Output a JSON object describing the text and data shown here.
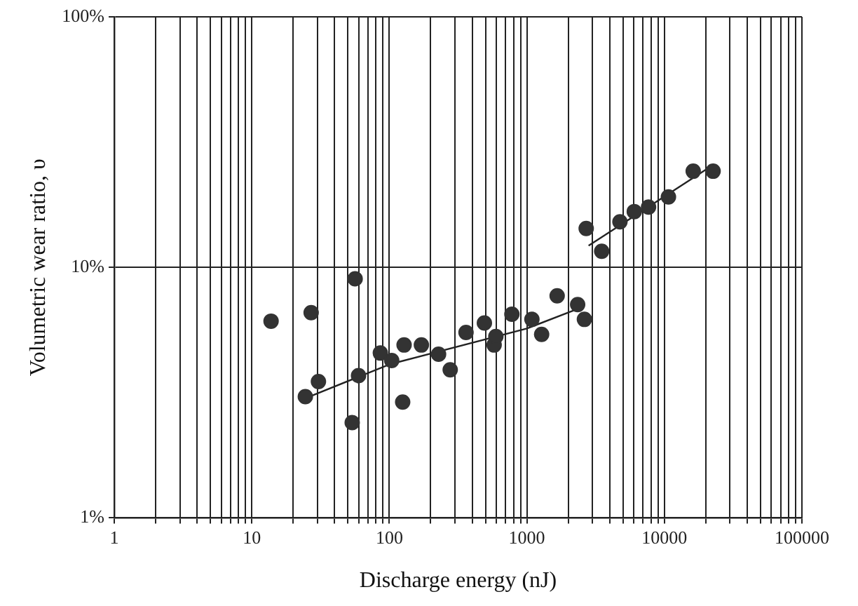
{
  "chart_data": {
    "type": "scatter",
    "xlabel": "Discharge energy (nJ)",
    "ylabel": "Volumetric wear ratio, υ",
    "log": "xy",
    "grid": true,
    "legend": false,
    "xlim": [
      1,
      100000
    ],
    "ylim": [
      1,
      100
    ],
    "xticks": [
      1,
      {
        "value": 2,
        "label": null
      },
      {
        "value": 3,
        "label": null
      },
      {
        "value": 4,
        "label": null
      },
      {
        "value": 5,
        "label": null
      },
      {
        "value": 6,
        "label": null
      },
      {
        "value": 7,
        "label": null
      },
      {
        "value": 8,
        "label": null
      },
      {
        "value": 9,
        "label": null
      },
      10,
      {
        "value": 20,
        "label": null
      },
      {
        "value": 30,
        "label": null
      },
      {
        "value": 40,
        "label": null
      },
      {
        "value": 50,
        "label": null
      },
      {
        "value": 60,
        "label": null
      },
      {
        "value": 70,
        "label": null
      },
      {
        "value": 80,
        "label": null
      },
      {
        "value": 90,
        "label": null
      },
      100,
      {
        "value": 200,
        "label": null
      },
      {
        "value": 300,
        "label": null
      },
      {
        "value": 400,
        "label": null
      },
      {
        "value": 500,
        "label": null
      },
      {
        "value": 600,
        "label": null
      },
      {
        "value": 700,
        "label": null
      },
      {
        "value": 800,
        "label": null
      },
      {
        "value": 900,
        "label": null
      },
      1000,
      {
        "value": 2000,
        "label": null
      },
      {
        "value": 3000,
        "label": null
      },
      {
        "value": 4000,
        "label": null
      },
      {
        "value": 5000,
        "label": null
      },
      {
        "value": 6000,
        "label": null
      },
      {
        "value": 7000,
        "label": null
      },
      {
        "value": 8000,
        "label": null
      },
      {
        "value": 9000,
        "label": null
      },
      10000,
      {
        "value": 20000,
        "label": null
      },
      {
        "value": 30000,
        "label": null
      },
      {
        "value": 40000,
        "label": null
      },
      {
        "value": 50000,
        "label": null
      },
      {
        "value": 60000,
        "label": null
      },
      {
        "value": 70000,
        "label": null
      },
      {
        "value": 80000,
        "label": null
      },
      {
        "value": 90000,
        "label": null
      },
      100000
    ],
    "yticks": [
      {
        "value": 1,
        "label": "1%"
      },
      {
        "value": 10,
        "label": "10%"
      },
      {
        "value": 100,
        "label": "100%"
      }
    ],
    "series": [
      {
        "marker": "circle",
        "color": "#333333",
        "x": [
          13.8,
          24.5,
          27,
          30.5,
          53.7,
          56.4,
          59.7,
          86,
          104,
          125,
          128,
          171,
          228,
          277,
          361,
          491,
          578,
          595,
          778,
          1088,
          1280,
          1660,
          2340,
          2620,
          2700,
          3500,
          4750,
          6040,
          7670,
          10700,
          16200,
          22600
        ],
        "values": [
          6.1,
          3.05,
          6.6,
          3.5,
          2.4,
          9.0,
          3.7,
          4.55,
          4.25,
          2.9,
          4.9,
          4.9,
          4.5,
          3.9,
          5.5,
          6.0,
          4.9,
          5.3,
          6.5,
          6.2,
          5.4,
          7.7,
          7.1,
          6.2,
          14.3,
          11.6,
          15.2,
          16.7,
          17.4,
          19.1,
          24.2,
          24.2
        ]
      },
      {
        "type": "line",
        "marker": "none",
        "color": "#222222",
        "x": [
          24.5,
          100,
          1000,
          2290
        ],
        "values": [
          3.0,
          4.1,
          5.7,
          6.8
        ]
      },
      {
        "type": "line",
        "marker": "none",
        "color": "#222222",
        "x": [
          2810,
          20600
        ],
        "values": [
          12.2,
          24.8
        ]
      }
    ]
  }
}
